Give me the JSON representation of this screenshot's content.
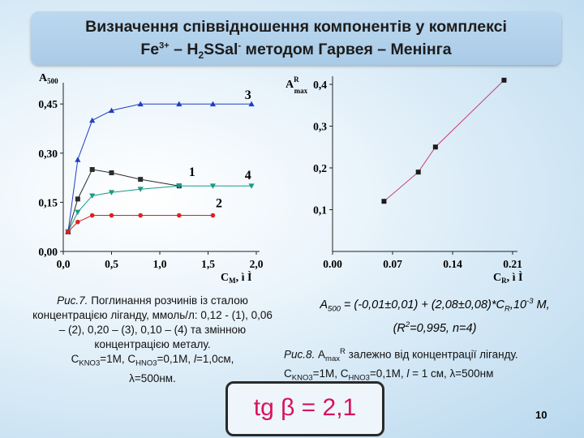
{
  "title": {
    "line1": "Визначення співвідношення компонентів у комплексі",
    "line2_a": "Fe",
    "line2_sup1": "3+",
    "line2_b": " – H",
    "line2_sub": "2",
    "line2_c": "SSal",
    "line2_sup2": "-",
    "line2_d": "  методом Гарвея – Менінга"
  },
  "caption_left": {
    "label": "Рис.7.",
    "text": " Поглинання розчинів із сталою концентрацією ліганду, ммоль/л: 0,12 - (1), 0,06 – (2), 0,20 – (3), 0,10 – (4) та змінною концентрацією металу.",
    "line2_c1": "С",
    "line2_s1": "KNO3",
    "line2_m1": "=1М, С",
    "line2_s2": "HNO3",
    "line2_m2": "=0,1М, ",
    "line2_l": "l",
    "line2_m3": "=1,0см,",
    "line3": "λ=500нм."
  },
  "equation": {
    "a": "A",
    "a_sub": "500",
    "b": " = (-0,01±0,01) + (2,08±0,08)*C",
    "c_sub": "R",
    "d": ",10",
    "d_sup": "-3",
    "e": " M,",
    "f": "(R",
    "f_sup": "2",
    "g": "=0,995, n=4)"
  },
  "caption_right": {
    "label": "Рис.8.",
    "t1": " A",
    "t1_sub": "max",
    "t1_sup": "R",
    "t2": " залежно від концентрації ліганду.",
    "l2_c1": "С",
    "l2_s1": "KNO3",
    "l2_m1": "=1М, С",
    "l2_s2": "HNO3",
    "l2_m2": "=0,1М, ",
    "l2_l": "l",
    "l2_m3": " = 1 см, λ=500нм"
  },
  "tg_label": "tg β = 2,1",
  "page_number": "10",
  "chart_data": [
    {
      "type": "line",
      "ylabel": "A",
      "ylabel_sub": "500",
      "xlabel": "C",
      "xlabel_sub": "M",
      "xlabel_tail": ", ì Ì",
      "xlim": [
        0,
        2.0
      ],
      "ylim": [
        0,
        0.5
      ],
      "x_ticks": [
        "0,0",
        "0,5",
        "1,0",
        "1,5",
        "2,0"
      ],
      "x_tick_values": [
        0,
        0.5,
        1.0,
        1.5,
        2.0
      ],
      "y_ticks": [
        "0,00",
        "0,15",
        "0,30",
        "0,45"
      ],
      "y_tick_values": [
        0,
        0.15,
        0.3,
        0.45
      ],
      "series": [
        {
          "name": "3",
          "color": "#1f3fc4",
          "marker": "triangle-up",
          "x": [
            0.05,
            0.15,
            0.3,
            0.5,
            0.8,
            1.2,
            1.55,
            1.95
          ],
          "y": [
            0.06,
            0.28,
            0.4,
            0.43,
            0.45,
            0.45,
            0.45,
            0.45
          ]
        },
        {
          "name": "1",
          "color": "#2b2b2b",
          "marker": "square",
          "x": [
            0.05,
            0.15,
            0.3,
            0.5,
            0.8,
            1.2
          ],
          "y": [
            0.06,
            0.16,
            0.25,
            0.24,
            0.22,
            0.2
          ]
        },
        {
          "name": "4",
          "color": "#1a9a88",
          "marker": "triangle-down",
          "x": [
            0.05,
            0.15,
            0.3,
            0.5,
            0.8,
            1.2,
            1.55,
            1.95
          ],
          "y": [
            0.06,
            0.12,
            0.17,
            0.18,
            0.19,
            0.2,
            0.2,
            0.2
          ]
        },
        {
          "name": "2",
          "color": "#e02020",
          "marker": "circle",
          "x": [
            0.05,
            0.15,
            0.3,
            0.5,
            0.8,
            1.2,
            1.55
          ],
          "y": [
            0.06,
            0.09,
            0.11,
            0.11,
            0.11,
            0.11,
            0.11
          ]
        }
      ],
      "series_label_positions_data": [
        {
          "name": "3",
          "x": 1.88,
          "y": 0.465
        },
        {
          "name": "1",
          "x": 1.3,
          "y": 0.23
        },
        {
          "name": "4",
          "x": 1.88,
          "y": 0.22
        },
        {
          "name": "2",
          "x": 1.58,
          "y": 0.135
        }
      ]
    },
    {
      "type": "scatter",
      "ylabel": "A",
      "ylabel_sup": "R",
      "ylabel_sub": "max",
      "xlabel": "C",
      "xlabel_sub": "R",
      "xlabel_tail": ", ì Ì",
      "xlim": [
        0,
        0.21
      ],
      "ylim": [
        0,
        0.4
      ],
      "x_ticks": [
        "0.00",
        "0.07",
        "0.14",
        "0.21"
      ],
      "x_tick_values": [
        0,
        0.07,
        0.14,
        0.21
      ],
      "y_ticks": [
        "0,1",
        "0,2",
        "0,3",
        "0,4"
      ],
      "y_tick_values": [
        0.1,
        0.2,
        0.3,
        0.4
      ],
      "marker": "square",
      "color": "#1c1c1c",
      "x": [
        0.06,
        0.1,
        0.12,
        0.2
      ],
      "y": [
        0.12,
        0.19,
        0.25,
        0.41
      ]
    }
  ]
}
